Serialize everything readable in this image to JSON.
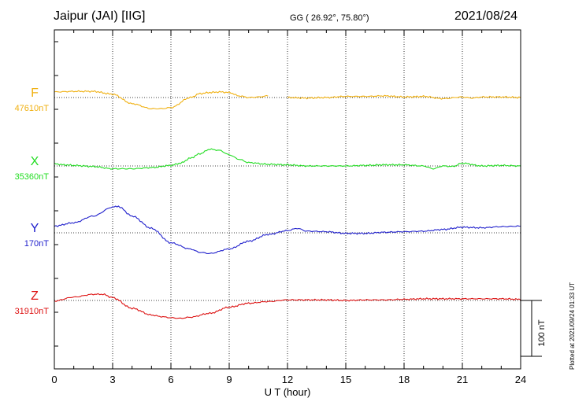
{
  "header": {
    "station": "Jaipur (JAI)  [IIG]",
    "coords": "GG ( 26.92°,  75.80°)",
    "date": "2021/08/24",
    "plotted": "Plotted at 2021/09/24 01:33 UT"
  },
  "chart_data": {
    "type": "line",
    "title": "Jaipur (JAI)  [IIG]",
    "xlabel": "U T (hour)",
    "xlim": [
      0,
      24
    ],
    "xticks": [
      0,
      3,
      6,
      9,
      12,
      15,
      18,
      21,
      24
    ],
    "x_tick_labels": [
      "0",
      "3",
      "6",
      "9",
      "12",
      "15",
      "18",
      "21",
      "24"
    ],
    "grid": true,
    "scale_bar": {
      "value": 100,
      "label": "100 nT"
    },
    "y_unit": "nT relative to baseline (panel units: 100 nT per scale bar)",
    "series": [
      {
        "name": "F",
        "baseline_label": "47610nT",
        "color": "#f0b010",
        "x": [
          0,
          1,
          2,
          3,
          4,
          5,
          5.5,
          6,
          7,
          7.5,
          8,
          8.5,
          9,
          9.5,
          10,
          10.5,
          11,
          11.2,
          11.8,
          12,
          13,
          14,
          15,
          16,
          17,
          18,
          19,
          20,
          21,
          21.5,
          22,
          23,
          24
        ],
        "y": [
          10,
          11,
          11,
          6,
          -11,
          -20,
          -20,
          -18,
          0,
          7,
          9,
          10,
          9,
          3,
          0,
          1,
          3,
          null,
          null,
          0,
          -1,
          0,
          2,
          2,
          3,
          1,
          2,
          -2,
          1,
          -1,
          1,
          1,
          0
        ]
      },
      {
        "name": "X",
        "baseline_label": "35360nT",
        "color": "#22dd22",
        "x": [
          0,
          0.5,
          1,
          2,
          3,
          4,
          5,
          6,
          6.5,
          7,
          7.5,
          8,
          8.5,
          9,
          9.5,
          10,
          11,
          12,
          13,
          14,
          15,
          16,
          17,
          18,
          19,
          19.5,
          20,
          20.5,
          21,
          22,
          23,
          24
        ],
        "y": [
          4,
          2,
          1,
          -1,
          -5,
          -5,
          -3,
          1,
          5,
          14,
          22,
          30,
          28,
          20,
          12,
          6,
          3,
          2,
          0,
          0,
          0,
          1,
          2,
          2,
          0,
          -5,
          0,
          -1,
          5,
          0,
          1,
          0
        ]
      },
      {
        "name": "Y",
        "baseline_label": "170nT",
        "color": "#2020cc",
        "x": [
          0,
          1,
          2,
          3,
          3.3,
          4,
          5,
          6,
          7,
          7.5,
          8,
          9,
          10,
          11,
          12,
          12.5,
          13,
          14,
          15,
          16,
          17,
          18,
          19,
          20,
          21,
          22,
          23,
          24
        ],
        "y": [
          12,
          18,
          30,
          46,
          47,
          30,
          8,
          -18,
          -29,
          -35,
          -37,
          -29,
          -15,
          -3,
          4,
          8,
          3,
          2,
          -1,
          -1,
          1,
          2,
          3,
          6,
          10,
          9,
          11,
          12
        ]
      },
      {
        "name": "Z",
        "baseline_label": "31910nT",
        "color": "#dd1111",
        "x": [
          0,
          1,
          2,
          2.5,
          3,
          4,
          5,
          5.5,
          6,
          6.5,
          7,
          8,
          9,
          10,
          11,
          12,
          13,
          14,
          15,
          16,
          17,
          18,
          19,
          20,
          21,
          22,
          23,
          24
        ],
        "y": [
          -1,
          6,
          11,
          11,
          5,
          -14,
          -26,
          -29,
          -31,
          -32,
          -30,
          -23,
          -12,
          -5,
          -2,
          1,
          1,
          1,
          0,
          1,
          1,
          2,
          3,
          3,
          3,
          3,
          3,
          2
        ]
      }
    ]
  }
}
